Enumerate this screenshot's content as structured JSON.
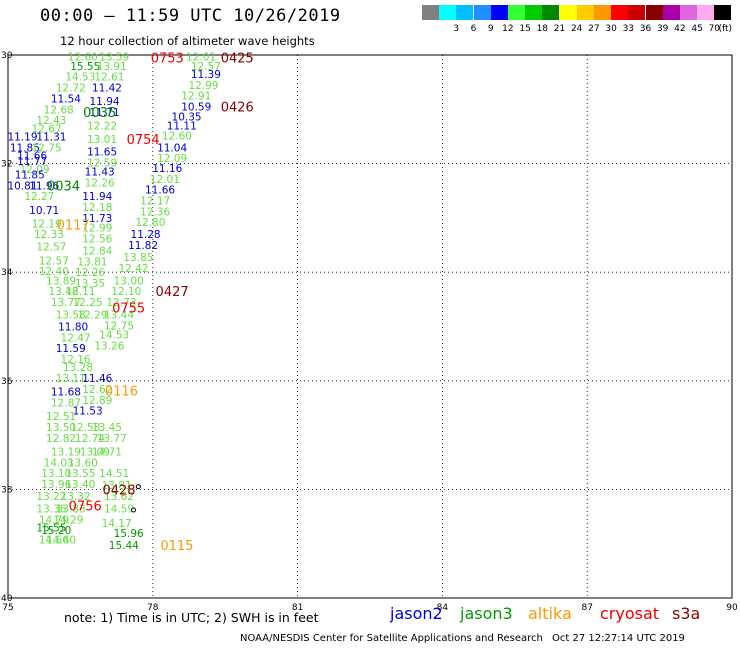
{
  "header": {
    "title": "00:00 – 11:59 UTC 10/26/2019",
    "subtitle": "12 hour collection of altimeter wave heights",
    "unit": "(ft)"
  },
  "color_scale": [
    {
      "label": "",
      "color": "#808080"
    },
    {
      "label": "3",
      "color": "#00ffff"
    },
    {
      "label": "6",
      "color": "#00bfff"
    },
    {
      "label": "9",
      "color": "#1e90ff"
    },
    {
      "label": "12",
      "color": "#0000ff"
    },
    {
      "label": "15",
      "color": "#33ff33"
    },
    {
      "label": "18",
      "color": "#00cc00"
    },
    {
      "label": "21",
      "color": "#008800"
    },
    {
      "label": "24",
      "color": "#ffff00"
    },
    {
      "label": "27",
      "color": "#ffcc00"
    },
    {
      "label": "30",
      "color": "#ff9900"
    },
    {
      "label": "33",
      "color": "#ff0000"
    },
    {
      "label": "36",
      "color": "#cc0000"
    },
    {
      "label": "39",
      "color": "#880000"
    },
    {
      "label": "42",
      "color": "#aa00aa"
    },
    {
      "label": "45",
      "color": "#dd66dd"
    },
    {
      "label": "70",
      "color": "#ffaaee"
    },
    {
      "label": "",
      "color": "#000000"
    }
  ],
  "axes": {
    "x_ticks": [
      "75",
      "78",
      "81",
      "84",
      "87",
      "90"
    ],
    "y_ticks": [
      "30",
      "32",
      "34",
      "36",
      "38",
      "40"
    ],
    "x_range": [
      75,
      90
    ],
    "y_range": [
      30,
      40
    ]
  },
  "chart_data": {
    "type": "scatter",
    "x_range": [
      75,
      90
    ],
    "y_range": [
      30,
      40
    ],
    "points": [
      {
        "lon": 76.55,
        "lat": 30.03,
        "v": "12.60",
        "c": "#66dd44"
      },
      {
        "lon": 77.2,
        "lat": 30.03,
        "v": "13.59",
        "c": "#66dd44"
      },
      {
        "lon": 76.6,
        "lat": 30.2,
        "v": "15.55",
        "c": "#009900"
      },
      {
        "lon": 77.15,
        "lat": 30.2,
        "v": "13.91",
        "c": "#66dd44"
      },
      {
        "lon": 76.5,
        "lat": 30.4,
        "v": "14.53",
        "c": "#66dd44"
      },
      {
        "lon": 77.1,
        "lat": 30.4,
        "v": "12.61",
        "c": "#66dd44"
      },
      {
        "lon": 76.3,
        "lat": 30.6,
        "v": "12.72",
        "c": "#66dd44"
      },
      {
        "lon": 77.05,
        "lat": 30.6,
        "v": "11.42",
        "c": "#0000cc"
      },
      {
        "lon": 76.2,
        "lat": 30.8,
        "v": "11.54",
        "c": "#0000cc"
      },
      {
        "lon": 77.0,
        "lat": 30.85,
        "v": "11.94",
        "c": "#0000cc"
      },
      {
        "lon": 76.05,
        "lat": 31.0,
        "v": "12.68",
        "c": "#66dd44"
      },
      {
        "lon": 77.0,
        "lat": 31.05,
        "v": "11.71",
        "c": "#0000cc"
      },
      {
        "lon": 75.9,
        "lat": 31.2,
        "v": "12.43",
        "c": "#66dd44"
      },
      {
        "lon": 75.8,
        "lat": 31.35,
        "v": "12.67",
        "c": "#66dd44"
      },
      {
        "lon": 76.95,
        "lat": 31.3,
        "v": "12.22",
        "c": "#66dd44"
      },
      {
        "lon": 75.3,
        "lat": 31.5,
        "v": "11.19",
        "c": "#0000cc"
      },
      {
        "lon": 75.9,
        "lat": 31.5,
        "v": "11.31",
        "c": "#0000cc"
      },
      {
        "lon": 76.95,
        "lat": 31.55,
        "v": "13.01",
        "c": "#66dd44"
      },
      {
        "lon": 75.35,
        "lat": 31.7,
        "v": "11.85",
        "c": "#0000cc"
      },
      {
        "lon": 75.8,
        "lat": 31.7,
        "v": "12.75",
        "c": "#66dd44"
      },
      {
        "lon": 76.95,
        "lat": 31.78,
        "v": "11.65",
        "c": "#0000cc"
      },
      {
        "lon": 75.5,
        "lat": 31.85,
        "v": "11.66",
        "c": "#0000cc"
      },
      {
        "lon": 75.5,
        "lat": 31.95,
        "v": "11.77",
        "c": "#0000cc"
      },
      {
        "lon": 76.95,
        "lat": 31.98,
        "v": "12.59",
        "c": "#66dd44"
      },
      {
        "lon": 75.55,
        "lat": 32.1,
        "v": "12.09",
        "c": "#66dd44"
      },
      {
        "lon": 76.9,
        "lat": 32.15,
        "v": "11.43",
        "c": "#0000cc"
      },
      {
        "lon": 75.45,
        "lat": 32.2,
        "v": "11.85",
        "c": "#0000cc"
      },
      {
        "lon": 76.9,
        "lat": 32.35,
        "v": "12.26",
        "c": "#66dd44"
      },
      {
        "lon": 75.3,
        "lat": 32.4,
        "v": "10.81",
        "c": "#0000cc"
      },
      {
        "lon": 75.75,
        "lat": 32.4,
        "v": "11.96",
        "c": "#0000cc"
      },
      {
        "lon": 75.65,
        "lat": 32.6,
        "v": "12.27",
        "c": "#66dd44"
      },
      {
        "lon": 76.85,
        "lat": 32.6,
        "v": "11.94",
        "c": "#0000cc"
      },
      {
        "lon": 75.75,
        "lat": 32.85,
        "v": "10.71",
        "c": "#0000cc"
      },
      {
        "lon": 76.85,
        "lat": 32.8,
        "v": "12.18",
        "c": "#66dd44"
      },
      {
        "lon": 76.85,
        "lat": 33.0,
        "v": "11.73",
        "c": "#0000cc"
      },
      {
        "lon": 75.8,
        "lat": 33.1,
        "v": "12.19",
        "c": "#66dd44"
      },
      {
        "lon": 76.85,
        "lat": 33.18,
        "v": "12.99",
        "c": "#66dd44"
      },
      {
        "lon": 75.85,
        "lat": 33.3,
        "v": "12.33",
        "c": "#66dd44"
      },
      {
        "lon": 76.85,
        "lat": 33.38,
        "v": "12.56",
        "c": "#66dd44"
      },
      {
        "lon": 75.9,
        "lat": 33.53,
        "v": "12.57",
        "c": "#66dd44"
      },
      {
        "lon": 76.85,
        "lat": 33.6,
        "v": "12.84",
        "c": "#66dd44"
      },
      {
        "lon": 75.95,
        "lat": 33.78,
        "v": "12.57",
        "c": "#66dd44"
      },
      {
        "lon": 76.75,
        "lat": 33.8,
        "v": "13.81",
        "c": "#66dd44"
      },
      {
        "lon": 75.95,
        "lat": 33.98,
        "v": "12.40",
        "c": "#66dd44"
      },
      {
        "lon": 76.7,
        "lat": 34.0,
        "v": "12.26",
        "c": "#66dd44"
      },
      {
        "lon": 76.1,
        "lat": 34.15,
        "v": "13.89",
        "c": "#66dd44"
      },
      {
        "lon": 76.7,
        "lat": 34.2,
        "v": "13.35",
        "c": "#66dd44"
      },
      {
        "lon": 76.15,
        "lat": 34.35,
        "v": "13.48",
        "c": "#66dd44"
      },
      {
        "lon": 76.5,
        "lat": 34.35,
        "v": "12.11",
        "c": "#66dd44"
      },
      {
        "lon": 76.2,
        "lat": 34.55,
        "v": "13.77",
        "c": "#66dd44"
      },
      {
        "lon": 76.65,
        "lat": 34.55,
        "v": "12.25",
        "c": "#66dd44"
      },
      {
        "lon": 76.3,
        "lat": 34.78,
        "v": "13.58",
        "c": "#66dd44"
      },
      {
        "lon": 76.75,
        "lat": 34.78,
        "v": "12.29",
        "c": "#66dd44"
      },
      {
        "lon": 76.35,
        "lat": 35.0,
        "v": "11.80",
        "c": "#0000cc"
      },
      {
        "lon": 76.4,
        "lat": 35.2,
        "v": "12.47",
        "c": "#66dd44"
      },
      {
        "lon": 76.3,
        "lat": 35.4,
        "v": "11.59",
        "c": "#0000cc"
      },
      {
        "lon": 76.4,
        "lat": 35.6,
        "v": "12.16",
        "c": "#66dd44"
      },
      {
        "lon": 76.45,
        "lat": 35.75,
        "v": "13.28",
        "c": "#66dd44"
      },
      {
        "lon": 76.3,
        "lat": 35.95,
        "v": "13.11",
        "c": "#66dd44"
      },
      {
        "lon": 76.85,
        "lat": 35.95,
        "v": "11.46",
        "c": "#0000cc"
      },
      {
        "lon": 76.2,
        "lat": 36.2,
        "v": "11.68",
        "c": "#0000cc"
      },
      {
        "lon": 76.85,
        "lat": 36.15,
        "v": "12.62",
        "c": "#66dd44"
      },
      {
        "lon": 76.2,
        "lat": 36.4,
        "v": "12.87",
        "c": "#66dd44"
      },
      {
        "lon": 76.85,
        "lat": 36.35,
        "v": "12.89",
        "c": "#66dd44"
      },
      {
        "lon": 76.65,
        "lat": 36.55,
        "v": "11.53",
        "c": "#0000cc"
      },
      {
        "lon": 76.1,
        "lat": 36.65,
        "v": "12.51",
        "c": "#66dd44"
      },
      {
        "lon": 76.1,
        "lat": 36.85,
        "v": "13.50",
        "c": "#66dd44"
      },
      {
        "lon": 76.6,
        "lat": 36.85,
        "v": "12.53",
        "c": "#66dd44"
      },
      {
        "lon": 77.05,
        "lat": 36.85,
        "v": "13.45",
        "c": "#66dd44"
      },
      {
        "lon": 76.1,
        "lat": 37.05,
        "v": "12.82",
        "c": "#66dd44"
      },
      {
        "lon": 76.7,
        "lat": 37.05,
        "v": "12.74",
        "c": "#66dd44"
      },
      {
        "lon": 77.15,
        "lat": 37.05,
        "v": "13.77",
        "c": "#66dd44"
      },
      {
        "lon": 76.2,
        "lat": 37.3,
        "v": "13.19",
        "c": "#66dd44"
      },
      {
        "lon": 76.8,
        "lat": 37.3,
        "v": "13.09",
        "c": "#66dd44"
      },
      {
        "lon": 77.05,
        "lat": 37.3,
        "v": "14.71",
        "c": "#66dd44"
      },
      {
        "lon": 76.05,
        "lat": 37.5,
        "v": "14.03",
        "c": "#66dd44"
      },
      {
        "lon": 76.55,
        "lat": 37.5,
        "v": "13.60",
        "c": "#66dd44"
      },
      {
        "lon": 76.0,
        "lat": 37.7,
        "v": "13.10",
        "c": "#66dd44"
      },
      {
        "lon": 76.5,
        "lat": 37.7,
        "v": "13.55",
        "c": "#66dd44"
      },
      {
        "lon": 77.2,
        "lat": 37.7,
        "v": "14.51",
        "c": "#66dd44"
      },
      {
        "lon": 76.0,
        "lat": 37.9,
        "v": "13.96",
        "c": "#66dd44"
      },
      {
        "lon": 76.5,
        "lat": 37.9,
        "v": "13.40",
        "c": "#66dd44"
      },
      {
        "lon": 77.25,
        "lat": 37.92,
        "v": "13.81",
        "c": "#66dd44"
      },
      {
        "lon": 75.9,
        "lat": 38.12,
        "v": "13.22",
        "c": "#66dd44"
      },
      {
        "lon": 76.4,
        "lat": 38.12,
        "v": "13.32",
        "c": "#66dd44"
      },
      {
        "lon": 77.3,
        "lat": 38.12,
        "v": "13.62",
        "c": "#66dd44"
      },
      {
        "lon": 75.9,
        "lat": 38.35,
        "v": "13.36",
        "c": "#66dd44"
      },
      {
        "lon": 76.3,
        "lat": 38.35,
        "v": "13.83",
        "c": "#66dd44"
      },
      {
        "lon": 77.3,
        "lat": 38.35,
        "v": "14.59",
        "c": "#66dd44"
      },
      {
        "lon": 75.95,
        "lat": 38.55,
        "v": "14.79",
        "c": "#66dd44"
      },
      {
        "lon": 76.25,
        "lat": 38.55,
        "v": "14.29",
        "c": "#66dd44"
      },
      {
        "lon": 77.25,
        "lat": 38.62,
        "v": "14.17",
        "c": "#66dd44"
      },
      {
        "lon": 75.9,
        "lat": 38.7,
        "v": "15.55",
        "c": "#009900"
      },
      {
        "lon": 76.0,
        "lat": 38.75,
        "v": "15.20",
        "c": "#009900"
      },
      {
        "lon": 77.5,
        "lat": 38.8,
        "v": "15.96",
        "c": "#009900"
      },
      {
        "lon": 75.95,
        "lat": 38.92,
        "v": "14.66",
        "c": "#66dd44"
      },
      {
        "lon": 76.1,
        "lat": 38.92,
        "v": "14.40",
        "c": "#66dd44"
      },
      {
        "lon": 77.4,
        "lat": 39.02,
        "v": "15.44",
        "c": "#009900"
      },
      {
        "lon": 79.0,
        "lat": 30.03,
        "v": "12.01",
        "c": "#66dd44"
      },
      {
        "lon": 79.1,
        "lat": 30.2,
        "v": "12.57",
        "c": "#66dd44"
      },
      {
        "lon": 79.1,
        "lat": 30.35,
        "v": "11.39",
        "c": "#0000cc"
      },
      {
        "lon": 79.05,
        "lat": 30.55,
        "v": "12.99",
        "c": "#66dd44"
      },
      {
        "lon": 78.9,
        "lat": 30.75,
        "v": "12.91",
        "c": "#66dd44"
      },
      {
        "lon": 78.9,
        "lat": 30.95,
        "v": "10.59",
        "c": "#0000cc"
      },
      {
        "lon": 78.7,
        "lat": 31.13,
        "v": "10.35",
        "c": "#0000cc"
      },
      {
        "lon": 78.6,
        "lat": 31.3,
        "v": "11.11",
        "c": "#0000cc"
      },
      {
        "lon": 78.5,
        "lat": 31.48,
        "v": "12.60",
        "c": "#66dd44"
      },
      {
        "lon": 78.4,
        "lat": 31.7,
        "v": "11.04",
        "c": "#0000cc"
      },
      {
        "lon": 78.4,
        "lat": 31.9,
        "v": "12.09",
        "c": "#66dd44"
      },
      {
        "lon": 78.3,
        "lat": 32.08,
        "v": "11.16",
        "c": "#0000cc"
      },
      {
        "lon": 78.25,
        "lat": 32.28,
        "v": "12.01",
        "c": "#66dd44"
      },
      {
        "lon": 78.15,
        "lat": 32.48,
        "v": "11.66",
        "c": "#0000cc"
      },
      {
        "lon": 78.05,
        "lat": 32.68,
        "v": "12.17",
        "c": "#66dd44"
      },
      {
        "lon": 78.05,
        "lat": 32.88,
        "v": "12.36",
        "c": "#66dd44"
      },
      {
        "lon": 77.95,
        "lat": 33.08,
        "v": "12.80",
        "c": "#66dd44"
      },
      {
        "lon": 77.85,
        "lat": 33.3,
        "v": "11.28",
        "c": "#0000cc"
      },
      {
        "lon": 77.8,
        "lat": 33.5,
        "v": "11.82",
        "c": "#0000cc"
      },
      {
        "lon": 77.7,
        "lat": 33.72,
        "v": "13.85",
        "c": "#66dd44"
      },
      {
        "lon": 77.6,
        "lat": 33.92,
        "v": "12.42",
        "c": "#66dd44"
      },
      {
        "lon": 77.5,
        "lat": 34.15,
        "v": "13.00",
        "c": "#66dd44"
      },
      {
        "lon": 77.45,
        "lat": 34.35,
        "v": "12.10",
        "c": "#66dd44"
      },
      {
        "lon": 77.35,
        "lat": 34.55,
        "v": "12.73",
        "c": "#66dd44"
      },
      {
        "lon": 77.3,
        "lat": 34.78,
        "v": "13.44",
        "c": "#66dd44"
      },
      {
        "lon": 77.3,
        "lat": 34.98,
        "v": "12.75",
        "c": "#66dd44"
      },
      {
        "lon": 77.2,
        "lat": 35.15,
        "v": "14.53",
        "c": "#66dd44"
      },
      {
        "lon": 77.1,
        "lat": 35.35,
        "v": "13.26",
        "c": "#66dd44"
      }
    ],
    "passes": [
      {
        "lon": 78.3,
        "lat": 30.05,
        "label": "0753",
        "c": "#ee0000"
      },
      {
        "lon": 79.75,
        "lat": 30.05,
        "label": "0425",
        "c": "#880000"
      },
      {
        "lon": 79.75,
        "lat": 30.95,
        "label": "0426",
        "c": "#880000"
      },
      {
        "lon": 76.9,
        "lat": 31.05,
        "label": "0035",
        "c": "#008800"
      },
      {
        "lon": 77.8,
        "lat": 31.55,
        "label": "0754",
        "c": "#ee0000"
      },
      {
        "lon": 76.15,
        "lat": 32.4,
        "label": "0034",
        "c": "#008800"
      },
      {
        "lon": 76.35,
        "lat": 33.12,
        "label": "0117",
        "c": "#ff9900"
      },
      {
        "lon": 78.4,
        "lat": 34.35,
        "label": "0427",
        "c": "#880000"
      },
      {
        "lon": 77.5,
        "lat": 34.65,
        "label": "0755",
        "c": "#ee0000"
      },
      {
        "lon": 77.35,
        "lat": 36.18,
        "label": "0116",
        "c": "#ff9900"
      },
      {
        "lon": 77.3,
        "lat": 38.0,
        "label": "0428",
        "c": "#880000"
      },
      {
        "lon": 76.6,
        "lat": 38.3,
        "label": "0756",
        "c": "#ee0000"
      },
      {
        "lon": 78.5,
        "lat": 39.02,
        "label": "0115",
        "c": "#ff9900"
      }
    ],
    "markers": [
      {
        "lon": 77.7,
        "lat": 37.95
      },
      {
        "lon": 77.6,
        "lat": 38.38
      }
    ]
  },
  "legend": {
    "note": "note:  1) Time is in UTC; 2) SWH is in feet",
    "items": [
      {
        "label": "jason2",
        "color": "#0000dd"
      },
      {
        "label": "jason3",
        "color": "#009900"
      },
      {
        "label": "altika",
        "color": "#ff9900"
      },
      {
        "label": "cryosat",
        "color": "#ee0000"
      },
      {
        "label": "s3a",
        "color": "#880000"
      }
    ]
  },
  "footer": {
    "credit": "NOAA/NESDIS Center for Satellite Applications and Research",
    "stamp": "Oct 27 12:27:14 UTC 2019"
  }
}
